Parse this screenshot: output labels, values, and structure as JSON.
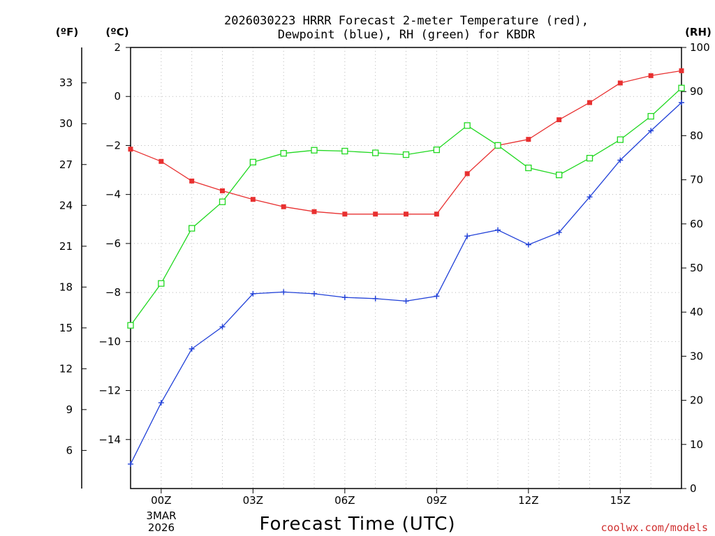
{
  "chart_data": {
    "type": "line",
    "title_line1": "2026030223 HRRR Forecast 2-meter Temperature (red),",
    "title_line2": "Dewpoint (blue), RH (green) for KBDR",
    "xlabel": "Forecast Time (UTC)",
    "credit": "coolwx.com/models",
    "left_unit_f": "(ºF)",
    "left_unit_c": "(ºC)",
    "right_unit": "(RH)",
    "date_label_line1": "3MAR",
    "date_label_line2": "2026",
    "x_hours": [
      -1,
      0,
      1,
      2,
      3,
      4,
      5,
      6,
      7,
      8,
      9,
      10,
      11,
      12,
      13,
      14,
      15,
      16,
      17
    ],
    "xlim": [
      -1,
      17
    ],
    "x_ticks": [
      {
        "hour": 0,
        "label": "00Z"
      },
      {
        "hour": 3,
        "label": "03Z"
      },
      {
        "hour": 6,
        "label": "06Z"
      },
      {
        "hour": 9,
        "label": "09Z"
      },
      {
        "hour": 12,
        "label": "12Z"
      },
      {
        "hour": 15,
        "label": "15Z"
      }
    ],
    "ylim_c": [
      -16,
      2
    ],
    "celsius_ticks": [
      2,
      0,
      -2,
      -4,
      -6,
      -8,
      -10,
      -12,
      -14
    ],
    "celsius_tick_labels": [
      "2",
      "0",
      "−2",
      "−4",
      "−6",
      "−8",
      "−10",
      "−12",
      "−14"
    ],
    "fahrenheit_ticks": [
      33,
      30,
      27,
      24,
      21,
      18,
      15,
      12,
      9,
      6
    ],
    "ylim_rh": [
      0,
      100
    ],
    "rh_ticks": [
      0,
      10,
      20,
      30,
      40,
      50,
      60,
      70,
      80,
      90,
      100
    ],
    "series": [
      {
        "name": "Temperature",
        "color": "#e83030",
        "marker": "filled-square",
        "units": "C",
        "values": [
          -2.15,
          -2.65,
          -3.45,
          -3.85,
          -4.2,
          -4.5,
          -4.7,
          -4.8,
          -4.8,
          -4.8,
          -4.8,
          -3.15,
          -2.0,
          -1.75,
          -0.95,
          -0.25,
          0.55,
          0.85,
          1.05
        ]
      },
      {
        "name": "Dewpoint",
        "color": "#2040d8",
        "marker": "plus",
        "units": "C",
        "values": [
          -15.0,
          -12.5,
          -10.3,
          -9.4,
          -8.05,
          -7.98,
          -8.05,
          -8.2,
          -8.25,
          -8.35,
          -8.15,
          -5.7,
          -5.45,
          -6.05,
          -5.55,
          -4.1,
          -2.6,
          -1.4,
          -0.25
        ]
      },
      {
        "name": "RH",
        "color": "#20d820",
        "marker": "open-square",
        "units": "%",
        "values": [
          37,
          46.5,
          59,
          65,
          74,
          76,
          76.7,
          76.5,
          76.1,
          75.7,
          76.8,
          82.3,
          77.8,
          72.7,
          71.1,
          74.9,
          79.1,
          84.4,
          90.8
        ]
      }
    ]
  }
}
